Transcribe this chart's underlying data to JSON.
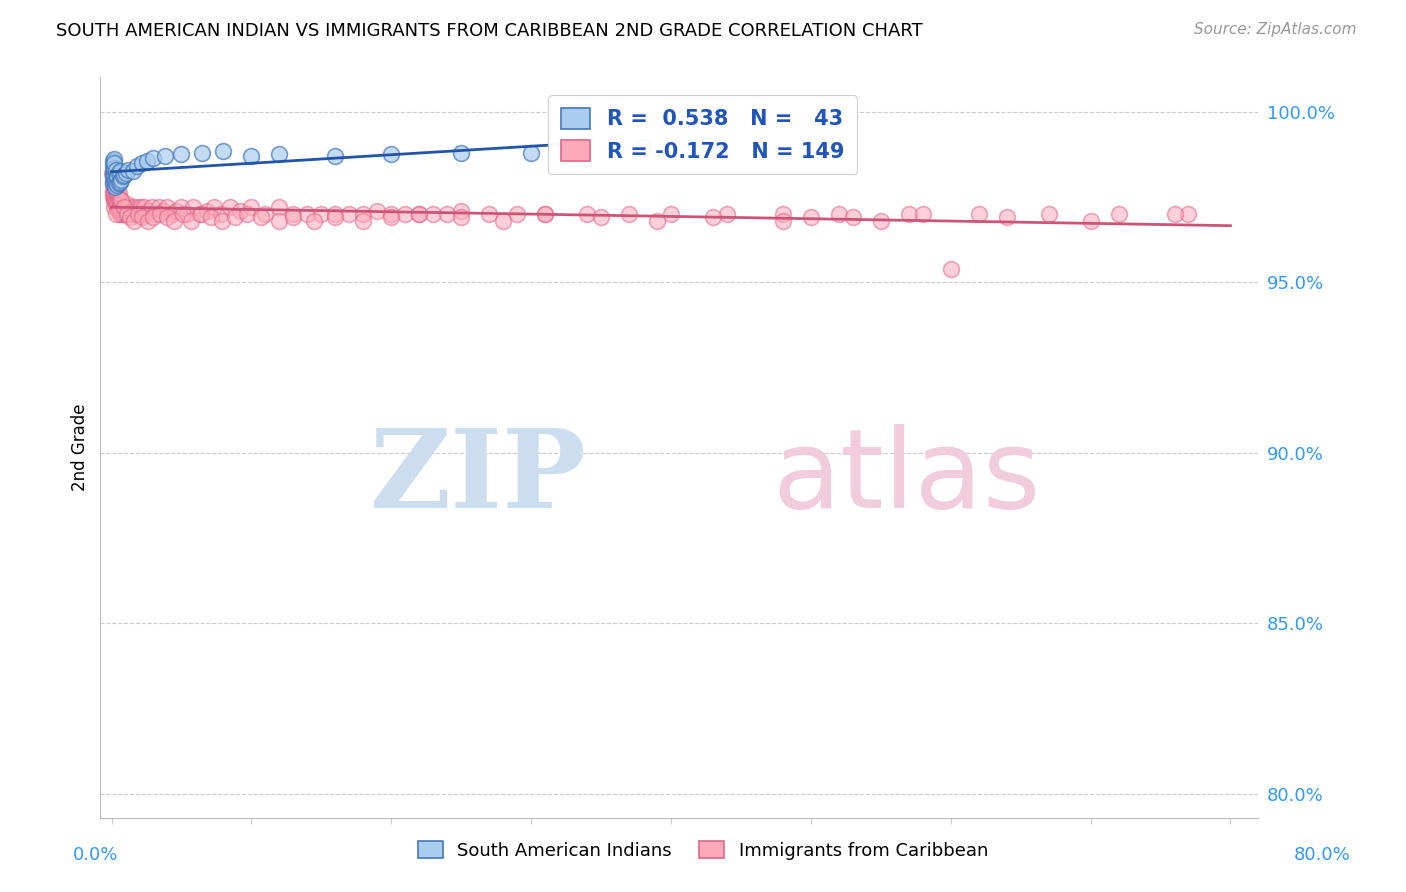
{
  "title": "SOUTH AMERICAN INDIAN VS IMMIGRANTS FROM CARIBBEAN 2ND GRADE CORRELATION CHART",
  "source": "Source: ZipAtlas.com",
  "ylabel": "2nd Grade",
  "ytick_vals": [
    0.8,
    0.85,
    0.9,
    0.95,
    1.0
  ],
  "ytick_labels": [
    "80.0%",
    "85.0%",
    "90.0%",
    "95.0%",
    "100.0%"
  ],
  "blue_R": 0.538,
  "blue_N": 43,
  "pink_R": -0.172,
  "pink_N": 149,
  "blue_fill_color": "#AACCEE",
  "blue_edge_color": "#4477BB",
  "pink_fill_color": "#FFAABB",
  "pink_edge_color": "#DD6688",
  "blue_line_color": "#2255AA",
  "pink_line_color": "#CC5577",
  "legend_label_blue": "South American Indians",
  "legend_label_pink": "Immigrants from Caribbean",
  "background_color": "#ffffff",
  "xlim": [
    -0.008,
    0.82
  ],
  "ylim": [
    0.793,
    1.01
  ],
  "watermark_zip_color": "#CCDDF0",
  "watermark_atlas_color": "#F0CCDD",
  "blue_x": [
    0.0008,
    0.001,
    0.001,
    0.0012,
    0.0014,
    0.0015,
    0.0015,
    0.0018,
    0.002,
    0.002,
    0.002,
    0.0022,
    0.0025,
    0.003,
    0.003,
    0.003,
    0.004,
    0.004,
    0.005,
    0.005,
    0.006,
    0.006,
    0.007,
    0.008,
    0.009,
    0.01,
    0.012,
    0.015,
    0.018,
    0.022,
    0.025,
    0.03,
    0.038,
    0.05,
    0.065,
    0.08,
    0.1,
    0.12,
    0.16,
    0.2,
    0.25,
    0.3,
    0.38
  ],
  "blue_y": [
    0.982,
    0.984,
    0.9855,
    0.979,
    0.981,
    0.983,
    0.986,
    0.98,
    0.9815,
    0.9835,
    0.985,
    0.978,
    0.98,
    0.979,
    0.981,
    0.983,
    0.9785,
    0.981,
    0.979,
    0.982,
    0.9795,
    0.9825,
    0.98,
    0.981,
    0.9815,
    0.982,
    0.983,
    0.9825,
    0.984,
    0.985,
    0.9855,
    0.9865,
    0.987,
    0.9875,
    0.988,
    0.9885,
    0.987,
    0.9875,
    0.987,
    0.9875,
    0.9878,
    0.988,
    0.9895
  ],
  "pink_x": [
    0.0005,
    0.0008,
    0.001,
    0.001,
    0.0012,
    0.0013,
    0.0015,
    0.0015,
    0.0016,
    0.002,
    0.002,
    0.002,
    0.002,
    0.0025,
    0.003,
    0.003,
    0.003,
    0.003,
    0.004,
    0.004,
    0.004,
    0.004,
    0.005,
    0.005,
    0.005,
    0.005,
    0.006,
    0.006,
    0.006,
    0.006,
    0.007,
    0.007,
    0.007,
    0.008,
    0.008,
    0.008,
    0.009,
    0.009,
    0.01,
    0.01,
    0.011,
    0.011,
    0.012,
    0.012,
    0.013,
    0.013,
    0.014,
    0.015,
    0.015,
    0.016,
    0.017,
    0.018,
    0.019,
    0.02,
    0.021,
    0.022,
    0.023,
    0.025,
    0.027,
    0.029,
    0.031,
    0.034,
    0.037,
    0.04,
    0.043,
    0.046,
    0.05,
    0.054,
    0.058,
    0.063,
    0.068,
    0.073,
    0.078,
    0.085,
    0.092,
    0.1,
    0.11,
    0.12,
    0.13,
    0.14,
    0.15,
    0.16,
    0.17,
    0.18,
    0.19,
    0.2,
    0.21,
    0.22,
    0.23,
    0.24,
    0.25,
    0.27,
    0.29,
    0.31,
    0.34,
    0.37,
    0.4,
    0.44,
    0.48,
    0.52,
    0.57,
    0.62,
    0.67,
    0.72,
    0.77,
    0.003,
    0.005,
    0.007,
    0.009,
    0.011,
    0.013,
    0.016,
    0.019,
    0.022,
    0.026,
    0.03,
    0.035,
    0.04,
    0.045,
    0.051,
    0.057,
    0.064,
    0.071,
    0.079,
    0.088,
    0.097,
    0.107,
    0.12,
    0.13,
    0.145,
    0.16,
    0.18,
    0.2,
    0.22,
    0.25,
    0.28,
    0.31,
    0.35,
    0.39,
    0.43,
    0.48,
    0.53,
    0.58,
    0.64,
    0.7,
    0.76,
    0.5,
    0.55,
    0.6,
    0.65,
    0.7,
    0.75,
    0.2,
    0.25
  ],
  "pink_y": [
    0.982,
    0.979,
    0.98,
    0.976,
    0.977,
    0.975,
    0.978,
    0.974,
    0.976,
    0.975,
    0.972,
    0.978,
    0.976,
    0.974,
    0.973,
    0.976,
    0.974,
    0.977,
    0.972,
    0.975,
    0.973,
    0.976,
    0.972,
    0.975,
    0.971,
    0.974,
    0.97,
    0.973,
    0.971,
    0.974,
    0.97,
    0.973,
    0.971,
    0.972,
    0.97,
    0.973,
    0.97,
    0.972,
    0.97,
    0.972,
    0.971,
    0.973,
    0.97,
    0.972,
    0.971,
    0.97,
    0.971,
    0.97,
    0.972,
    0.971,
    0.97,
    0.971,
    0.972,
    0.97,
    0.972,
    0.97,
    0.972,
    0.97,
    0.971,
    0.972,
    0.97,
    0.972,
    0.971,
    0.972,
    0.97,
    0.971,
    0.972,
    0.97,
    0.972,
    0.97,
    0.971,
    0.972,
    0.97,
    0.972,
    0.971,
    0.972,
    0.97,
    0.972,
    0.97,
    0.97,
    0.97,
    0.97,
    0.97,
    0.97,
    0.971,
    0.97,
    0.97,
    0.97,
    0.97,
    0.97,
    0.971,
    0.97,
    0.97,
    0.97,
    0.97,
    0.97,
    0.97,
    0.97,
    0.97,
    0.97,
    0.97,
    0.97,
    0.97,
    0.97,
    0.97,
    0.97,
    0.976,
    0.974,
    0.972,
    0.97,
    0.969,
    0.968,
    0.97,
    0.969,
    0.968,
    0.969,
    0.97,
    0.969,
    0.968,
    0.97,
    0.968,
    0.97,
    0.969,
    0.968,
    0.969,
    0.97,
    0.969,
    0.968,
    0.969,
    0.968,
    0.969,
    0.968,
    0.969,
    0.97,
    0.969,
    0.968,
    0.97,
    0.969,
    0.968,
    0.969,
    0.968,
    0.969,
    0.97,
    0.969,
    0.968,
    0.97,
    0.969,
    0.968,
    0.954,
    0.97,
    0.969,
    0.97,
    0.969,
    0.968,
    0.97,
    0.958,
    0.956
  ]
}
